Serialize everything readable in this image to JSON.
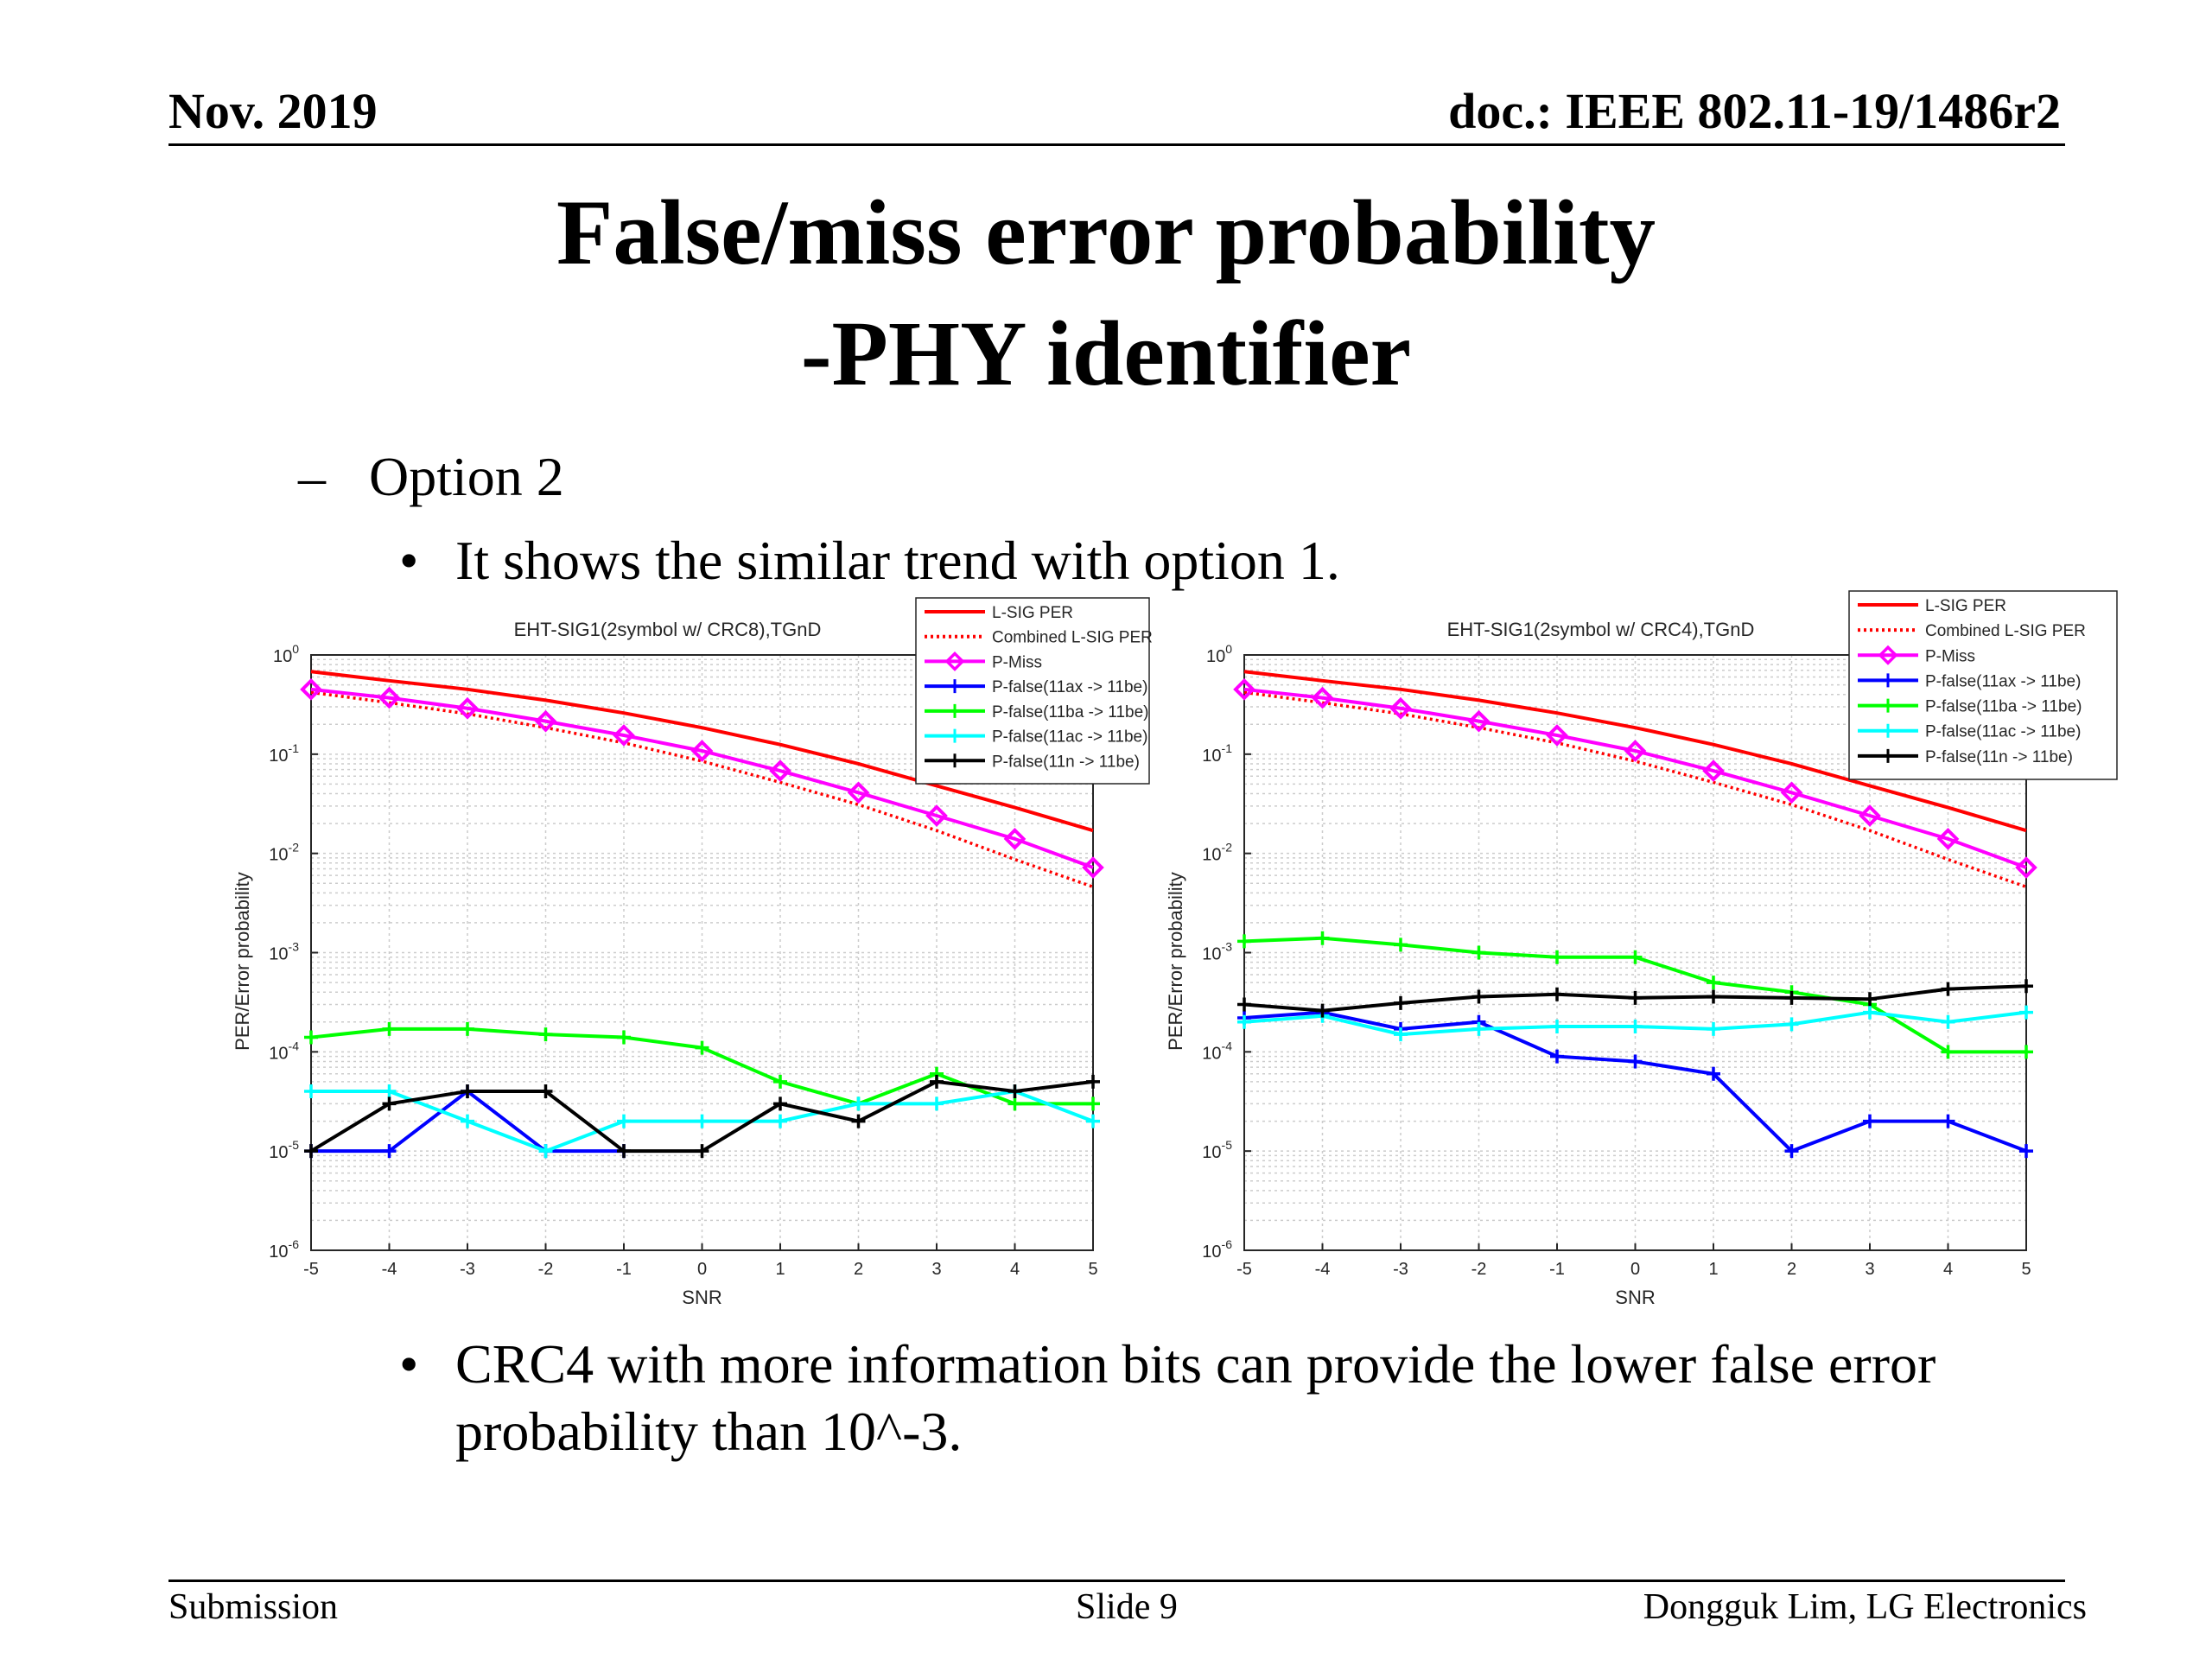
{
  "header": {
    "date": "Nov. 2019",
    "doc": "doc.: IEEE 802.11-19/1486r2"
  },
  "title": {
    "line1": "False/miss error probability",
    "line2": "-PHY identifier"
  },
  "bullets": {
    "level1_mark": "–",
    "level1_text": "Option 2",
    "level2_mark": "•",
    "level2a_text": "It shows the similar trend with option 1.",
    "level2b_line1": "CRC4 with more information bits can provide the lower false error",
    "level2b_line2": "probability than 10^-3."
  },
  "footer": {
    "left": "Submission",
    "center": "Slide 9",
    "right": "Dongguk Lim, LG Electronics"
  },
  "colors": {
    "lsig": "#ff0000",
    "combined": "#ff0000",
    "pmiss": "#ff00ff",
    "p11ax": "#0000ff",
    "p11ba": "#00ff00",
    "p11ac": "#00ffff",
    "p11n": "#000000"
  },
  "chart_data": [
    {
      "type": "line",
      "title": "EHT-SIG1(2symbol w/ CRC8),TGnD",
      "xlabel": "SNR",
      "ylabel": "PER/Error probability",
      "yscale": "log",
      "xlim": [
        -5,
        5
      ],
      "ylim": [
        1e-06,
        1
      ],
      "grid": true,
      "legend_position": "top-right",
      "x": [
        -5,
        -4,
        -3,
        -2,
        -1,
        0,
        1,
        2,
        3,
        4,
        5
      ],
      "xticks": [
        "-5",
        "-4",
        "-3",
        "-2",
        "-1",
        "0",
        "1",
        "2",
        "3",
        "4",
        "5"
      ],
      "yticks": [
        {
          "base": "10",
          "exp": "0",
          "value": 1
        },
        {
          "base": "10",
          "exp": "-1",
          "value": 0.1
        },
        {
          "base": "10",
          "exp": "-2",
          "value": 0.01
        },
        {
          "base": "10",
          "exp": "-3",
          "value": 0.001
        },
        {
          "base": "10",
          "exp": "-4",
          "value": 0.0001
        },
        {
          "base": "10",
          "exp": "-5",
          "value": 1e-05
        },
        {
          "base": "10",
          "exp": "-6",
          "value": 1e-06
        }
      ],
      "series": [
        {
          "name": "L-SIG PER",
          "key": "lsig",
          "style": "solid",
          "marker": "none",
          "values": [
            0.68,
            0.55,
            0.45,
            0.35,
            0.26,
            0.185,
            0.125,
            0.08,
            0.048,
            0.029,
            0.017
          ]
        },
        {
          "name": "Combined L-SIG PER",
          "key": "combined",
          "style": "dotted",
          "marker": "none",
          "values": [
            0.42,
            0.33,
            0.255,
            0.185,
            0.13,
            0.085,
            0.052,
            0.031,
            0.017,
            0.0087,
            0.0046
          ]
        },
        {
          "name": "P-Miss",
          "key": "pmiss",
          "style": "solid",
          "marker": "diamond",
          "values": [
            0.45,
            0.37,
            0.29,
            0.215,
            0.155,
            0.108,
            0.068,
            0.041,
            0.024,
            0.014,
            0.0072
          ]
        },
        {
          "name": "P-false(11ax -> 11be)",
          "key": "p11ax",
          "style": "solid",
          "marker": "plus",
          "values": [
            1e-05,
            1e-05,
            4e-05,
            1e-05,
            1e-05,
            null,
            null,
            null,
            null,
            null,
            null
          ]
        },
        {
          "name": "P-false(11ba -> 11be)",
          "key": "p11ba",
          "style": "solid",
          "marker": "plus",
          "values": [
            0.00014,
            0.00017,
            0.00017,
            0.00015,
            0.00014,
            0.00011,
            5e-05,
            3e-05,
            6e-05,
            3e-05,
            3e-05
          ]
        },
        {
          "name": "P-false(11ac -> 11be)",
          "key": "p11ac",
          "style": "solid",
          "marker": "plus",
          "values": [
            4e-05,
            4e-05,
            2e-05,
            1e-05,
            2e-05,
            2e-05,
            2e-05,
            3e-05,
            3e-05,
            4e-05,
            2e-05
          ]
        },
        {
          "name": "P-false(11n -> 11be)",
          "key": "p11n",
          "style": "solid",
          "marker": "plus",
          "values": [
            1e-05,
            3e-05,
            4e-05,
            4e-05,
            1e-05,
            1e-05,
            3e-05,
            2e-05,
            5e-05,
            4e-05,
            5e-05
          ]
        }
      ]
    },
    {
      "type": "line",
      "title": "EHT-SIG1(2symbol w/ CRC4),TGnD",
      "xlabel": "SNR",
      "ylabel": "PER/Error probability",
      "yscale": "log",
      "xlim": [
        -5,
        5
      ],
      "ylim": [
        1e-06,
        1
      ],
      "grid": true,
      "legend_position": "top-right",
      "x": [
        -5,
        -4,
        -3,
        -2,
        -1,
        0,
        1,
        2,
        3,
        4,
        5
      ],
      "xticks": [
        "-5",
        "-4",
        "-3",
        "-2",
        "-1",
        "0",
        "1",
        "2",
        "3",
        "4",
        "5"
      ],
      "yticks": [
        {
          "base": "10",
          "exp": "0",
          "value": 1
        },
        {
          "base": "10",
          "exp": "-1",
          "value": 0.1
        },
        {
          "base": "10",
          "exp": "-2",
          "value": 0.01
        },
        {
          "base": "10",
          "exp": "-3",
          "value": 0.001
        },
        {
          "base": "10",
          "exp": "-4",
          "value": 0.0001
        },
        {
          "base": "10",
          "exp": "-5",
          "value": 1e-05
        },
        {
          "base": "10",
          "exp": "-6",
          "value": 1e-06
        }
      ],
      "series": [
        {
          "name": "L-SIG PER",
          "key": "lsig",
          "style": "solid",
          "marker": "none",
          "values": [
            0.68,
            0.55,
            0.45,
            0.35,
            0.26,
            0.185,
            0.125,
            0.08,
            0.048,
            0.029,
            0.017
          ]
        },
        {
          "name": "Combined L-SIG PER",
          "key": "combined",
          "style": "dotted",
          "marker": "none",
          "values": [
            0.42,
            0.33,
            0.255,
            0.185,
            0.13,
            0.085,
            0.052,
            0.031,
            0.017,
            0.0087,
            0.0046
          ]
        },
        {
          "name": "P-Miss",
          "key": "pmiss",
          "style": "solid",
          "marker": "diamond",
          "values": [
            0.45,
            0.37,
            0.29,
            0.215,
            0.155,
            0.108,
            0.068,
            0.041,
            0.024,
            0.014,
            0.0072
          ]
        },
        {
          "name": "P-false(11ax -> 11be)",
          "key": "p11ax",
          "style": "solid",
          "marker": "plus",
          "values": [
            0.00022,
            0.00025,
            0.00017,
            0.0002,
            9e-05,
            8e-05,
            6e-05,
            1e-05,
            2e-05,
            2e-05,
            1e-05
          ]
        },
        {
          "name": "P-false(11ba -> 11be)",
          "key": "p11ba",
          "style": "solid",
          "marker": "plus",
          "values": [
            0.0013,
            0.0014,
            0.0012,
            0.001,
            0.0009,
            0.0009,
            0.0005,
            0.0004,
            0.0003,
            0.0001,
            0.0001
          ]
        },
        {
          "name": "P-false(11ac -> 11be)",
          "key": "p11ac",
          "style": "solid",
          "marker": "plus",
          "values": [
            0.0002,
            0.00023,
            0.00015,
            0.00017,
            0.00018,
            0.00018,
            0.00017,
            0.00019,
            0.00025,
            0.0002,
            0.00025
          ]
        },
        {
          "name": "P-false(11n -> 11be)",
          "key": "p11n",
          "style": "solid",
          "marker": "plus",
          "values": [
            0.0003,
            0.00026,
            0.00031,
            0.00036,
            0.00038,
            0.00035,
            0.00036,
            0.00035,
            0.00034,
            0.00043,
            0.00046
          ]
        }
      ]
    }
  ]
}
